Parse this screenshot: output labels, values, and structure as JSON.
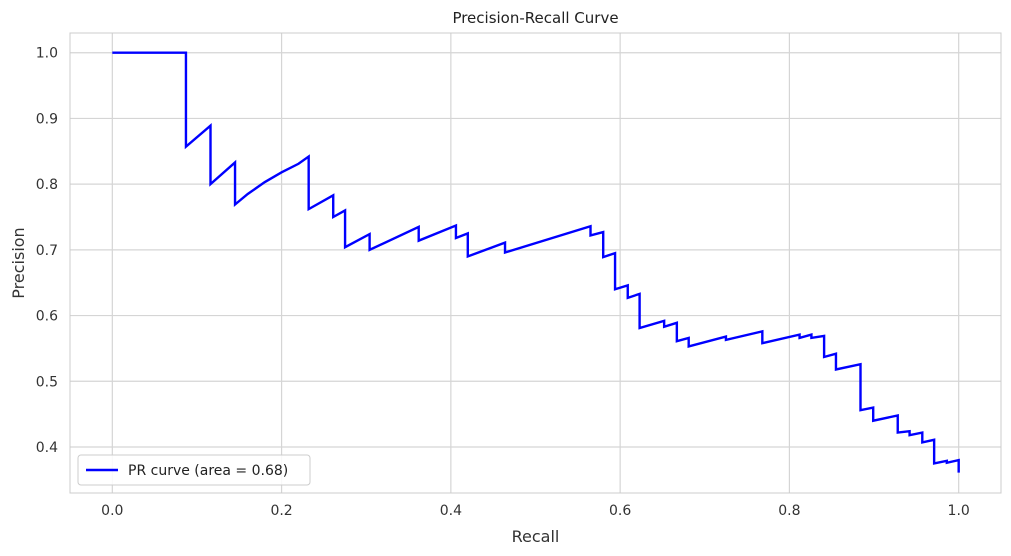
{
  "chart_data": {
    "type": "line",
    "title": "Precision-Recall Curve",
    "xlabel": "Recall",
    "ylabel": "Precision",
    "xlim": [
      -0.05,
      1.05
    ],
    "ylim": [
      0.33,
      1.03
    ],
    "xticks": [
      0.0,
      0.2,
      0.4,
      0.6,
      0.8,
      1.0
    ],
    "xtick_labels": [
      "0.0",
      "0.2",
      "0.4",
      "0.6",
      "0.8",
      "1.0"
    ],
    "yticks": [
      0.4,
      0.5,
      0.6,
      0.7,
      0.8,
      0.9,
      1.0
    ],
    "ytick_labels": [
      "0.4",
      "0.5",
      "0.6",
      "0.7",
      "0.8",
      "0.9",
      "1.0"
    ],
    "grid": true,
    "legend": {
      "placement": "lower-left",
      "entries": [
        "PR curve (area = 0.68)"
      ]
    },
    "series": [
      {
        "name": "PR curve (area = 0.68)",
        "color": "#0000ff",
        "points": [
          [
            0.0,
            1.0
          ],
          [
            0.087,
            1.0
          ],
          [
            0.087,
            0.857
          ],
          [
            0.116,
            0.889
          ],
          [
            0.116,
            0.8
          ],
          [
            0.145,
            0.833
          ],
          [
            0.145,
            0.769
          ],
          [
            0.16,
            0.785
          ],
          [
            0.18,
            0.803
          ],
          [
            0.2,
            0.818
          ],
          [
            0.22,
            0.831
          ],
          [
            0.232,
            0.842
          ],
          [
            0.232,
            0.762
          ],
          [
            0.261,
            0.783
          ],
          [
            0.261,
            0.75
          ],
          [
            0.275,
            0.76
          ],
          [
            0.275,
            0.704
          ],
          [
            0.304,
            0.724
          ],
          [
            0.304,
            0.7
          ],
          [
            0.362,
            0.735
          ],
          [
            0.362,
            0.714
          ],
          [
            0.406,
            0.737
          ],
          [
            0.406,
            0.718
          ],
          [
            0.42,
            0.725
          ],
          [
            0.42,
            0.69
          ],
          [
            0.464,
            0.711
          ],
          [
            0.464,
            0.696
          ],
          [
            0.565,
            0.736
          ],
          [
            0.565,
            0.722
          ],
          [
            0.58,
            0.727
          ],
          [
            0.58,
            0.689
          ],
          [
            0.594,
            0.695
          ],
          [
            0.594,
            0.64
          ],
          [
            0.609,
            0.646
          ],
          [
            0.609,
            0.627
          ],
          [
            0.623,
            0.633
          ],
          [
            0.623,
            0.581
          ],
          [
            0.652,
            0.592
          ],
          [
            0.652,
            0.583
          ],
          [
            0.667,
            0.589
          ],
          [
            0.667,
            0.561
          ],
          [
            0.681,
            0.566
          ],
          [
            0.681,
            0.553
          ],
          [
            0.725,
            0.568
          ],
          [
            0.725,
            0.563
          ],
          [
            0.768,
            0.576
          ],
          [
            0.768,
            0.558
          ],
          [
            0.812,
            0.571
          ],
          [
            0.812,
            0.566
          ],
          [
            0.826,
            0.571
          ],
          [
            0.826,
            0.566
          ],
          [
            0.841,
            0.569
          ],
          [
            0.841,
            0.537
          ],
          [
            0.855,
            0.542
          ],
          [
            0.855,
            0.518
          ],
          [
            0.884,
            0.526
          ],
          [
            0.884,
            0.456
          ],
          [
            0.899,
            0.46
          ],
          [
            0.899,
            0.44
          ],
          [
            0.928,
            0.448
          ],
          [
            0.928,
            0.422
          ],
          [
            0.942,
            0.424
          ],
          [
            0.942,
            0.418
          ],
          [
            0.957,
            0.422
          ],
          [
            0.957,
            0.407
          ],
          [
            0.971,
            0.411
          ],
          [
            0.971,
            0.375
          ],
          [
            0.986,
            0.379
          ],
          [
            0.986,
            0.376
          ],
          [
            1.0,
            0.38
          ],
          [
            1.0,
            0.361
          ]
        ]
      }
    ]
  }
}
